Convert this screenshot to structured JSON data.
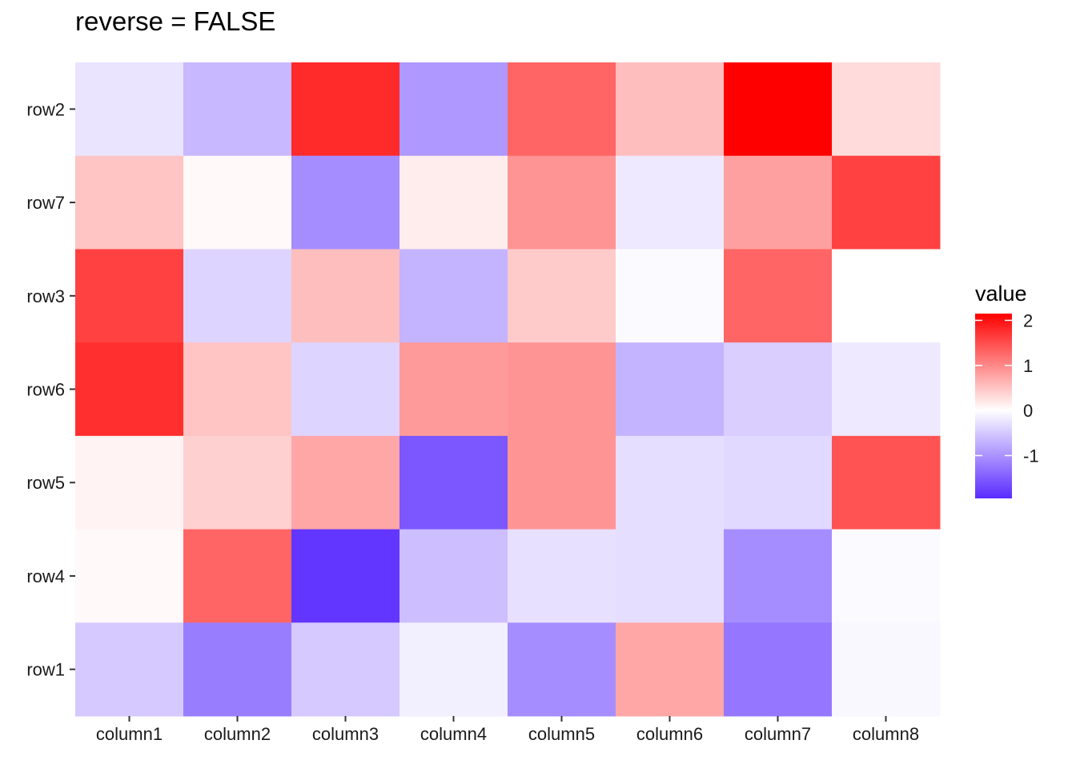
{
  "chart_data": {
    "type": "heatmap",
    "title": "reverse = FALSE",
    "xlabel": "",
    "ylabel": "",
    "x_categories": [
      "column1",
      "column2",
      "column3",
      "column4",
      "column5",
      "column6",
      "column7",
      "column8"
    ],
    "y_categories_top_to_bottom": [
      "row2",
      "row7",
      "row3",
      "row6",
      "row5",
      "row4",
      "row1"
    ],
    "values": [
      [
        -0.25,
        -0.65,
        1.8,
        -0.95,
        1.3,
        0.55,
        2.15,
        0.3
      ],
      [
        0.5,
        0.05,
        -1.05,
        0.15,
        0.9,
        -0.2,
        0.8,
        1.6
      ],
      [
        1.6,
        -0.4,
        0.55,
        -0.7,
        0.45,
        -0.05,
        1.3,
        0.0
      ],
      [
        1.75,
        0.5,
        -0.4,
        0.85,
        0.9,
        -0.7,
        -0.45,
        -0.2
      ],
      [
        0.1,
        0.4,
        0.75,
        -1.55,
        0.9,
        -0.3,
        -0.35,
        1.45
      ],
      [
        0.05,
        1.3,
        -1.85,
        -0.6,
        -0.28,
        -0.3,
        -1.05,
        -0.05
      ],
      [
        -0.5,
        -1.2,
        -0.5,
        -0.15,
        -1.05,
        0.75,
        -1.25,
        -0.07
      ]
    ],
    "legend": {
      "title": "value",
      "position": "right",
      "ticks": [
        2,
        1,
        0,
        -1
      ],
      "tick_labels": [
        "2",
        "1",
        "0",
        "-1"
      ],
      "range": [
        -1.95,
        2.15
      ]
    },
    "colors": {
      "low": "#5a2bff",
      "mid": "#ffffff",
      "high": "#ff0000"
    },
    "grid": false
  }
}
